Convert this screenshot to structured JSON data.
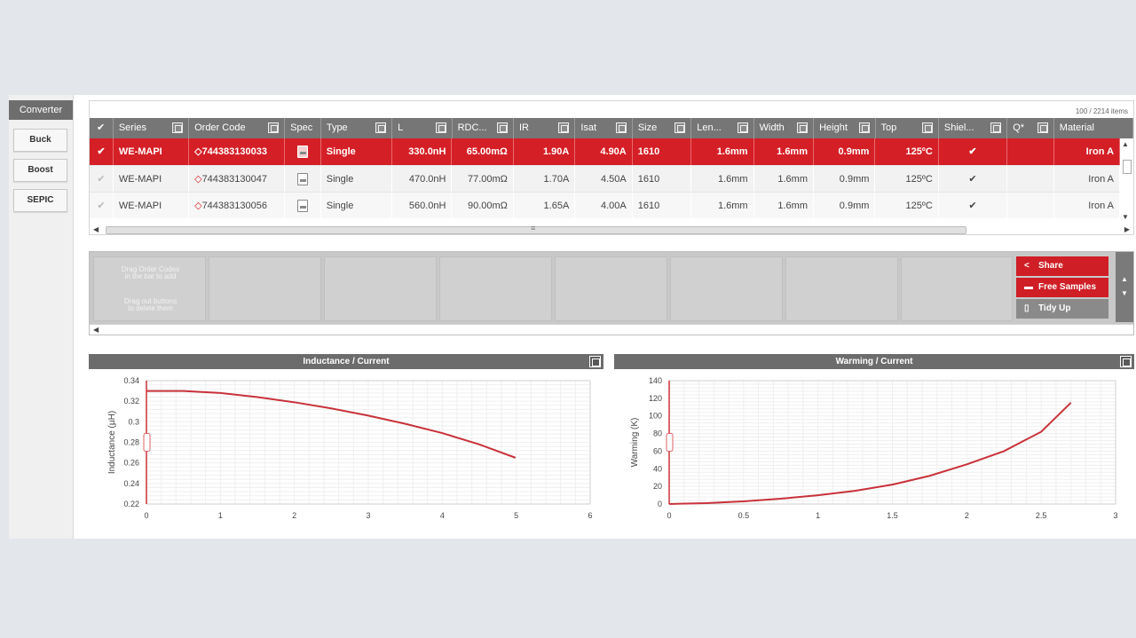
{
  "sidebar": {
    "header": "Converter",
    "buttons": [
      "Buck",
      "Boost",
      "SEPIC"
    ]
  },
  "grid": {
    "items_count": "100 / 2214 items",
    "columns": [
      "",
      "Series",
      "Order Code",
      "Spec",
      "Type",
      "L",
      "RDC...",
      "IR",
      "Isat",
      "Size",
      "Len...",
      "Width",
      "Height",
      "Top",
      "Shiel...",
      "Q*",
      "Material"
    ],
    "rows": [
      {
        "selected": true,
        "series": "WE-MAPI",
        "order_code": "744383130033",
        "type": "Single",
        "L": "330.0nH",
        "rdc": "65.00mΩ",
        "ir": "1.90A",
        "isat": "4.90A",
        "size": "1610",
        "length": "1.6mm",
        "width": "1.6mm",
        "height": "0.9mm",
        "top": "125ºC",
        "material": "Iron A"
      },
      {
        "selected": false,
        "series": "WE-MAPI",
        "order_code": "744383130047",
        "type": "Single",
        "L": "470.0nH",
        "rdc": "77.00mΩ",
        "ir": "1.70A",
        "isat": "4.50A",
        "size": "1610",
        "length": "1.6mm",
        "width": "1.6mm",
        "height": "0.9mm",
        "top": "125ºC",
        "material": "Iron A"
      },
      {
        "selected": false,
        "series": "WE-MAPI",
        "order_code": "744383130056",
        "type": "Single",
        "L": "560.0nH",
        "rdc": "90.00mΩ",
        "ir": "1.65A",
        "isat": "4.00A",
        "size": "1610",
        "length": "1.6mm",
        "width": "1.6mm",
        "height": "0.9mm",
        "top": "125ºC",
        "material": "Iron A"
      }
    ]
  },
  "workspace": {
    "hint_line1a": "Drag Order Codes",
    "hint_line1b": "in the bar to add",
    "hint_line2a": "Drag out buttons",
    "hint_line2b": "to delete them",
    "buttons": {
      "share": "Share",
      "free_samples": "Free Samples",
      "tidy_up": "Tidy Up"
    }
  },
  "icons": [
    "checkmark-icon",
    "diamond-icon",
    "pdf-icon",
    "filter-icon",
    "share-icon",
    "cart-icon",
    "trash-icon",
    "maximize-icon"
  ],
  "colors": {
    "accent": "#d51f26",
    "header_grey": "#767676",
    "curve": "#c8323a"
  },
  "chart_data": [
    {
      "type": "line",
      "title": "Inductance / Current",
      "xlabel": "",
      "ylabel": "Inductance (µH)",
      "xlim": [
        0,
        6
      ],
      "ylim": [
        0.22,
        0.34
      ],
      "x_ticks": [
        "0",
        "1",
        "2",
        "3",
        "4",
        "5",
        "6"
      ],
      "y_ticks": [
        "0.22",
        "0.24",
        "0.26",
        "0.28",
        "0.3",
        "0.32",
        "0.34"
      ],
      "grid": true,
      "series": [
        {
          "x": [
            0,
            0.5,
            1,
            1.5,
            2,
            2.5,
            3,
            3.5,
            4,
            4.5,
            4.99
          ],
          "y": [
            0.33,
            0.33,
            0.328,
            0.324,
            0.319,
            0.313,
            0.306,
            0.298,
            0.289,
            0.278,
            0.265
          ]
        }
      ]
    },
    {
      "type": "line",
      "title": "Warming / Current",
      "xlabel": "",
      "ylabel": "Warming (K)",
      "xlim": [
        0,
        3
      ],
      "ylim": [
        0,
        140
      ],
      "x_ticks": [
        "0",
        "0.5",
        "1",
        "1.5",
        "2",
        "2.5",
        "3"
      ],
      "y_ticks": [
        "0",
        "20",
        "40",
        "60",
        "80",
        "100",
        "120",
        "140"
      ],
      "grid": true,
      "series": [
        {
          "x": [
            0,
            0.25,
            0.5,
            0.75,
            1,
            1.25,
            1.5,
            1.75,
            2,
            2.25,
            2.5,
            2.7
          ],
          "y": [
            0,
            1,
            3,
            6,
            10,
            15,
            22,
            32,
            45,
            60,
            82,
            115
          ]
        }
      ]
    }
  ]
}
